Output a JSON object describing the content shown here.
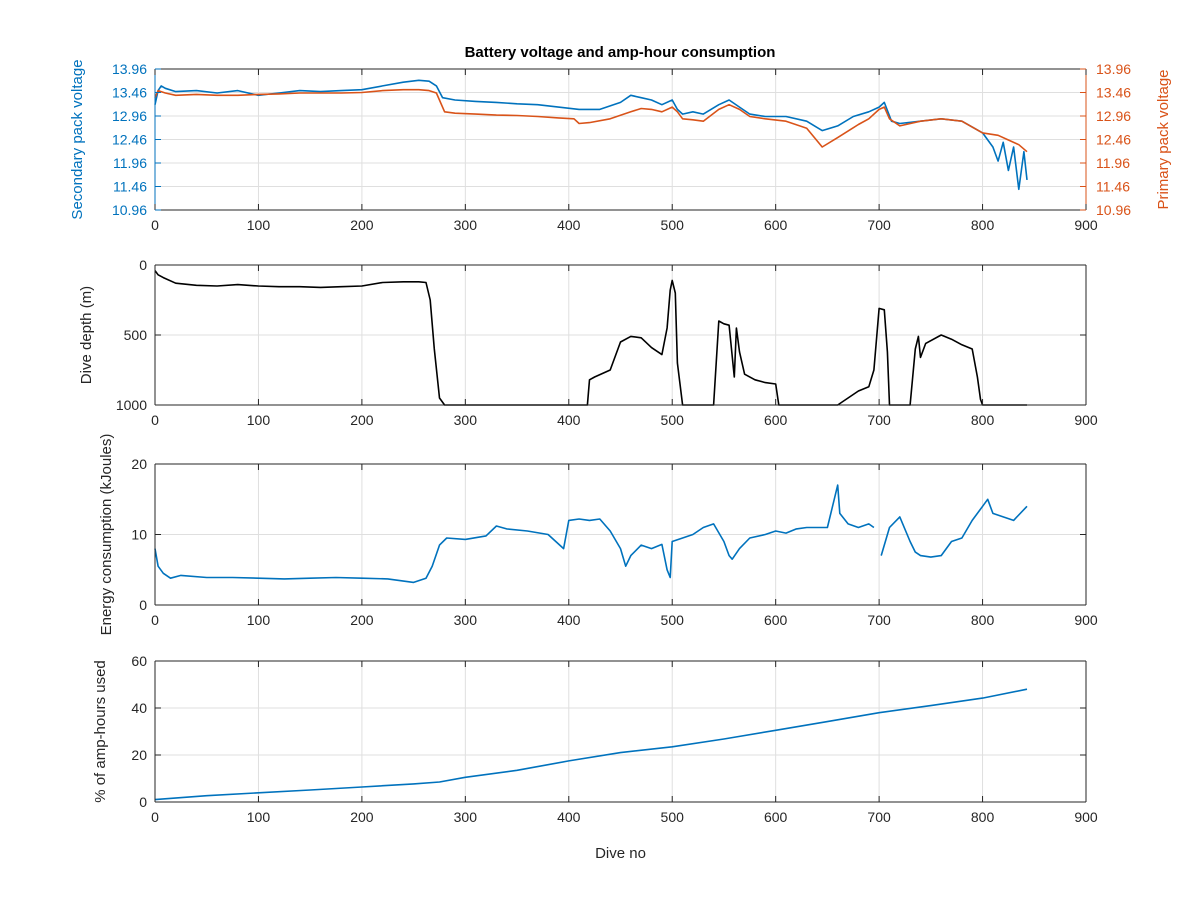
{
  "figure": {
    "title": "Battery voltage and amp-hour consumption"
  },
  "colors": {
    "blue": "#0072BD",
    "orange": "#D95319",
    "black": "#000000",
    "grid": "#DFDFDF",
    "axis": "#262626"
  },
  "chart_data": [
    {
      "type": "line",
      "title": "Battery voltage and amp-hour consumption",
      "xlabel": "",
      "ylabel_left": "Secondary pack voltage",
      "ylabel_right": "Primary pack voltage",
      "xlim": [
        0,
        900
      ],
      "ylim": [
        10.96,
        13.96
      ],
      "xticks": [
        "0",
        "100",
        "200",
        "300",
        "400",
        "500",
        "600",
        "700",
        "800",
        "900"
      ],
      "yticks": [
        "10.96",
        "11.46",
        "11.96",
        "12.46",
        "12.96",
        "13.46",
        "13.96"
      ],
      "grid": true,
      "series": [
        {
          "axis": "left",
          "color": "#0072BD",
          "x": [
            0,
            3,
            6,
            10,
            20,
            40,
            60,
            80,
            100,
            120,
            140,
            160,
            180,
            200,
            220,
            240,
            255,
            265,
            272,
            278,
            290,
            310,
            330,
            350,
            370,
            390,
            410,
            430,
            450,
            460,
            470,
            480,
            490,
            500,
            505,
            510,
            520,
            530,
            545,
            555,
            565,
            575,
            590,
            610,
            630,
            645,
            660,
            675,
            690,
            700,
            705,
            712,
            720,
            740,
            760,
            780,
            800,
            810,
            815,
            820,
            825,
            830,
            835,
            840,
            843
          ],
          "y": [
            13.2,
            13.5,
            13.6,
            13.55,
            13.48,
            13.5,
            13.45,
            13.5,
            13.4,
            13.45,
            13.5,
            13.48,
            13.5,
            13.52,
            13.6,
            13.68,
            13.72,
            13.7,
            13.6,
            13.35,
            13.3,
            13.27,
            13.25,
            13.22,
            13.2,
            13.15,
            13.1,
            13.1,
            13.25,
            13.4,
            13.35,
            13.3,
            13.2,
            13.3,
            13.1,
            13.0,
            13.05,
            13.0,
            13.2,
            13.3,
            13.15,
            13.0,
            12.95,
            12.95,
            12.85,
            12.65,
            12.75,
            12.95,
            13.05,
            13.15,
            13.25,
            12.85,
            12.8,
            12.85,
            12.9,
            12.85,
            12.6,
            12.3,
            12.0,
            12.4,
            11.8,
            12.3,
            11.4,
            12.2,
            11.6
          ]
        },
        {
          "axis": "right",
          "color": "#D95319",
          "x": [
            0,
            3,
            10,
            20,
            40,
            60,
            80,
            100,
            120,
            140,
            160,
            180,
            200,
            220,
            240,
            255,
            265,
            272,
            280,
            290,
            310,
            330,
            350,
            370,
            390,
            405,
            410,
            420,
            440,
            460,
            470,
            480,
            490,
            500,
            505,
            510,
            520,
            530,
            545,
            555,
            565,
            575,
            590,
            610,
            630,
            645,
            660,
            680,
            690,
            700,
            705,
            710,
            720,
            740,
            760,
            780,
            800,
            815,
            825,
            835,
            843
          ],
          "y": [
            13.35,
            13.5,
            13.45,
            13.4,
            13.42,
            13.4,
            13.4,
            13.42,
            13.43,
            13.45,
            13.45,
            13.45,
            13.46,
            13.5,
            13.52,
            13.52,
            13.5,
            13.45,
            13.05,
            13.02,
            13.0,
            12.98,
            12.97,
            12.95,
            12.92,
            12.9,
            12.8,
            12.82,
            12.9,
            13.05,
            13.12,
            13.1,
            13.05,
            13.15,
            13.05,
            12.9,
            12.88,
            12.85,
            13.1,
            13.2,
            13.1,
            12.95,
            12.9,
            12.85,
            12.7,
            12.3,
            12.5,
            12.78,
            12.9,
            13.1,
            13.15,
            12.9,
            12.75,
            12.85,
            12.9,
            12.85,
            12.6,
            12.55,
            12.45,
            12.35,
            12.2
          ]
        }
      ]
    },
    {
      "type": "line",
      "xlabel": "",
      "ylabel": "Dive depth (m)",
      "xlim": [
        0,
        900
      ],
      "ylim": [
        1000,
        0
      ],
      "y_reversed": true,
      "xticks": [
        "0",
        "100",
        "200",
        "300",
        "400",
        "500",
        "600",
        "700",
        "800",
        "900"
      ],
      "yticks": [
        "0",
        "500",
        "1000"
      ],
      "grid": true,
      "series": [
        {
          "color": "#000000",
          "x": [
            0,
            3,
            8,
            20,
            40,
            60,
            80,
            100,
            120,
            140,
            160,
            180,
            200,
            220,
            240,
            255,
            262,
            266,
            270,
            275,
            280,
            285,
            300,
            350,
            400,
            418,
            420,
            425,
            440,
            450,
            460,
            470,
            480,
            490,
            495,
            498,
            500,
            503,
            505,
            510,
            512,
            540,
            545,
            550,
            555,
            560,
            562,
            565,
            570,
            580,
            590,
            600,
            603,
            606,
            608,
            610,
            660,
            680,
            690,
            695,
            700,
            705,
            708,
            710,
            720,
            730,
            735,
            738,
            740,
            745,
            760,
            770,
            780,
            790,
            795,
            798,
            800,
            820,
            843
          ],
          "y": [
            40,
            70,
            90,
            130,
            145,
            150,
            140,
            150,
            155,
            155,
            160,
            155,
            150,
            125,
            120,
            120,
            125,
            250,
            600,
            950,
            1000,
            1000,
            1000,
            1000,
            1000,
            1000,
            820,
            800,
            750,
            550,
            510,
            520,
            590,
            640,
            450,
            180,
            110,
            200,
            700,
            1000,
            1000,
            1000,
            400,
            420,
            430,
            800,
            450,
            620,
            780,
            820,
            840,
            850,
            1000,
            1000,
            1000,
            1000,
            1000,
            900,
            870,
            750,
            310,
            320,
            620,
            1000,
            1000,
            1000,
            600,
            510,
            660,
            560,
            500,
            530,
            570,
            600,
            800,
            960,
            1000,
            1000,
            1000
          ]
        }
      ]
    },
    {
      "type": "line",
      "xlabel": "",
      "ylabel": "Energy consumption (kJoules)",
      "xlim": [
        0,
        900
      ],
      "ylim": [
        0,
        20
      ],
      "xticks": [
        "0",
        "100",
        "200",
        "300",
        "400",
        "500",
        "600",
        "700",
        "800",
        "900"
      ],
      "yticks": [
        "0",
        "10",
        "20"
      ],
      "grid": true,
      "series": [
        {
          "color": "#0072BD",
          "x": [
            0,
            3,
            8,
            15,
            25,
            50,
            75,
            100,
            125,
            150,
            175,
            200,
            225,
            250,
            262,
            268,
            275,
            282,
            300,
            320,
            330,
            340,
            360,
            380,
            395,
            400,
            410,
            420,
            430,
            440,
            450,
            455,
            460,
            470,
            480,
            490,
            495,
            498,
            500,
            510,
            520,
            530,
            540,
            550,
            555,
            558,
            565,
            575,
            590,
            600,
            610,
            620,
            630,
            640,
            650,
            660,
            662,
            670,
            680,
            690,
            695,
            null,
            702,
            710,
            720,
            730,
            735,
            740,
            750,
            760,
            770,
            780,
            790,
            800,
            805,
            810,
            820,
            830,
            843
          ],
          "y": [
            8.0,
            5.5,
            4.5,
            3.8,
            4.2,
            3.9,
            3.9,
            3.8,
            3.7,
            3.8,
            3.9,
            3.8,
            3.7,
            3.2,
            3.8,
            5.5,
            8.5,
            9.5,
            9.3,
            9.8,
            11.2,
            10.8,
            10.5,
            10.0,
            8.0,
            12.0,
            12.2,
            12.0,
            12.2,
            10.5,
            8.0,
            5.5,
            7.0,
            8.5,
            8.0,
            8.6,
            5.0,
            3.9,
            9.0,
            9.5,
            10.0,
            11.0,
            11.5,
            9.0,
            7.0,
            6.5,
            8.0,
            9.5,
            10.0,
            10.5,
            10.2,
            10.8,
            11.0,
            11.0,
            11.0,
            17.0,
            13.0,
            11.5,
            11.0,
            11.5,
            11.0,
            null,
            7.0,
            11.0,
            12.5,
            9.0,
            7.5,
            7.0,
            6.8,
            7.0,
            9.0,
            9.5,
            12.0,
            14.0,
            15.0,
            13.0,
            12.5,
            12.0,
            14.0
          ]
        }
      ]
    },
    {
      "type": "line",
      "xlabel": "Dive no",
      "ylabel": "% of amp-hours used",
      "xlim": [
        0,
        900
      ],
      "ylim": [
        0,
        60
      ],
      "xticks": [
        "0",
        "100",
        "200",
        "300",
        "400",
        "500",
        "600",
        "700",
        "800",
        "900"
      ],
      "yticks": [
        "0",
        "20",
        "40",
        "60"
      ],
      "grid": true,
      "series": [
        {
          "color": "#0072BD",
          "x": [
            0,
            50,
            100,
            150,
            200,
            250,
            275,
            300,
            350,
            400,
            450,
            500,
            550,
            600,
            650,
            700,
            750,
            800,
            843
          ],
          "y": [
            1.0,
            2.7,
            3.9,
            5.1,
            6.4,
            7.7,
            8.5,
            10.5,
            13.5,
            17.5,
            21.0,
            23.5,
            26.8,
            30.5,
            34.2,
            38.0,
            41.0,
            44.2,
            48.0
          ]
        }
      ]
    }
  ]
}
